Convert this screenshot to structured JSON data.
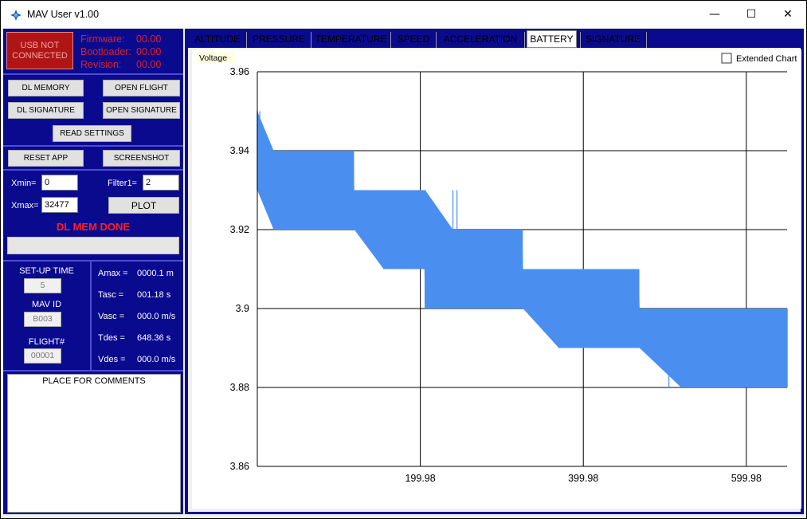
{
  "window": {
    "title": "MAV User v1.00",
    "controls": {
      "minimize": "—",
      "maximize": "☐",
      "close": "✕"
    }
  },
  "device": {
    "usb_status": "USB NOT\nCONNECTED",
    "firmware_label": "Firmware:",
    "firmware_value": "00.00",
    "bootloader_label": "Bootloader:",
    "bootloader_value": "00.00",
    "revision_label": "Revision:",
    "revision_value": "00.00"
  },
  "buttons": {
    "dl_memory": "DL MEMORY",
    "open_flight": "OPEN FLIGHT",
    "dl_signature": "DL SIGNATURE",
    "open_signature": "OPEN SIGNATURE",
    "read_settings": "READ SETTINGS",
    "reset_app": "RESET APP",
    "screenshot": "SCREENSHOT",
    "plot": "PLOT"
  },
  "plot_settings": {
    "xmin_label": "Xmin=",
    "xmin_value": "0",
    "xmax_label": "Xmax=",
    "xmax_value": "32477",
    "filter1_label": "Filter1=",
    "filter1_value": "2"
  },
  "status_text": "DL MEM DONE",
  "progress": 0,
  "setup": {
    "setup_time_label": "SET-UP TIME",
    "setup_time_value": "5",
    "mav_id_label": "MAV ID",
    "mav_id_value": "B003",
    "flight_label": "FLIGHT#",
    "flight_value": "00001"
  },
  "stats": {
    "amax_label": "Amax =",
    "amax_value": "0000.1 m",
    "tasc_label": "Tasc =",
    "tasc_value": "001.18 s",
    "vasc_label": "Vasc =",
    "vasc_value": "000.0 m/s",
    "tdes_label": "Tdes =",
    "tdes_value": "648.36 s",
    "vdes_label": "Vdes =",
    "vdes_value": "000.0 m/s"
  },
  "comments_placeholder": "PLACE FOR COMMENTS",
  "tabs": [
    {
      "label": "ALTITUDE"
    },
    {
      "label": "PRESSURE"
    },
    {
      "label": "TEMPERATURE"
    },
    {
      "label": "SPEED"
    },
    {
      "label": "ACCELERATION"
    },
    {
      "label": "BATTERY",
      "active": true
    },
    {
      "label": "SIGNATURE"
    }
  ],
  "extended_chart_label": "Extended Chart",
  "extended_chart_checked": false,
  "colors": {
    "series": "#4a8ff0",
    "panel": "#0a0a8f",
    "status": "#ff2020"
  },
  "chart_data": {
    "type": "line",
    "series_label": "Voltage",
    "xlim": [
      0,
      649.98
    ],
    "ylim": [
      3.86,
      3.96
    ],
    "xticks": [
      199.98,
      399.98,
      599.98
    ],
    "xtick_labels": [
      "199.98",
      "399.98",
      "599.98"
    ],
    "yticks": [
      3.86,
      3.88,
      3.9,
      3.92,
      3.94,
      3.96
    ],
    "ytick_labels": [
      "3.86",
      "3.88",
      "3.9",
      "3.92",
      "3.94",
      "3.96"
    ],
    "grid": true,
    "series": [
      {
        "values_description_points": [
          {
            "x": 0,
            "y_low": 3.93,
            "y_high": 3.95
          },
          {
            "x": 20,
            "y_low": 3.92,
            "y_high": 3.94
          },
          {
            "x": 118,
            "y_low": 3.92,
            "y_high": 3.94
          },
          {
            "x": 119,
            "y_low": 3.92,
            "y_high": 3.93
          },
          {
            "x": 155,
            "y_low": 3.91,
            "y_high": 3.93
          },
          {
            "x": 205,
            "y_low": 3.91,
            "y_high": 3.93
          },
          {
            "x": 206,
            "y_low": 3.9,
            "y_high": 3.93
          },
          {
            "x": 240,
            "y_low": 3.9,
            "y_high": 3.92
          },
          {
            "x": 325,
            "y_low": 3.9,
            "y_high": 3.92
          },
          {
            "x": 326,
            "y_low": 3.9,
            "y_high": 3.91
          },
          {
            "x": 370,
            "y_low": 3.89,
            "y_high": 3.91
          },
          {
            "x": 468,
            "y_low": 3.89,
            "y_high": 3.91
          },
          {
            "x": 469,
            "y_low": 3.89,
            "y_high": 3.9
          },
          {
            "x": 520,
            "y_low": 3.88,
            "y_high": 3.9
          },
          {
            "x": 649.98,
            "y_low": 3.88,
            "y_high": 3.9
          }
        ],
        "spikes": [
          {
            "x": 3,
            "y": 3.95
          },
          {
            "x": 240,
            "y": 3.93
          },
          {
            "x": 245,
            "y": 3.93
          },
          {
            "x": 160,
            "y": 3.91
          },
          {
            "x": 168,
            "y": 3.91
          },
          {
            "x": 460,
            "y": 3.91
          },
          {
            "x": 468,
            "y": 3.9
          },
          {
            "x": 500,
            "y": 3.89
          },
          {
            "x": 505,
            "y": 3.88
          }
        ]
      }
    ]
  }
}
